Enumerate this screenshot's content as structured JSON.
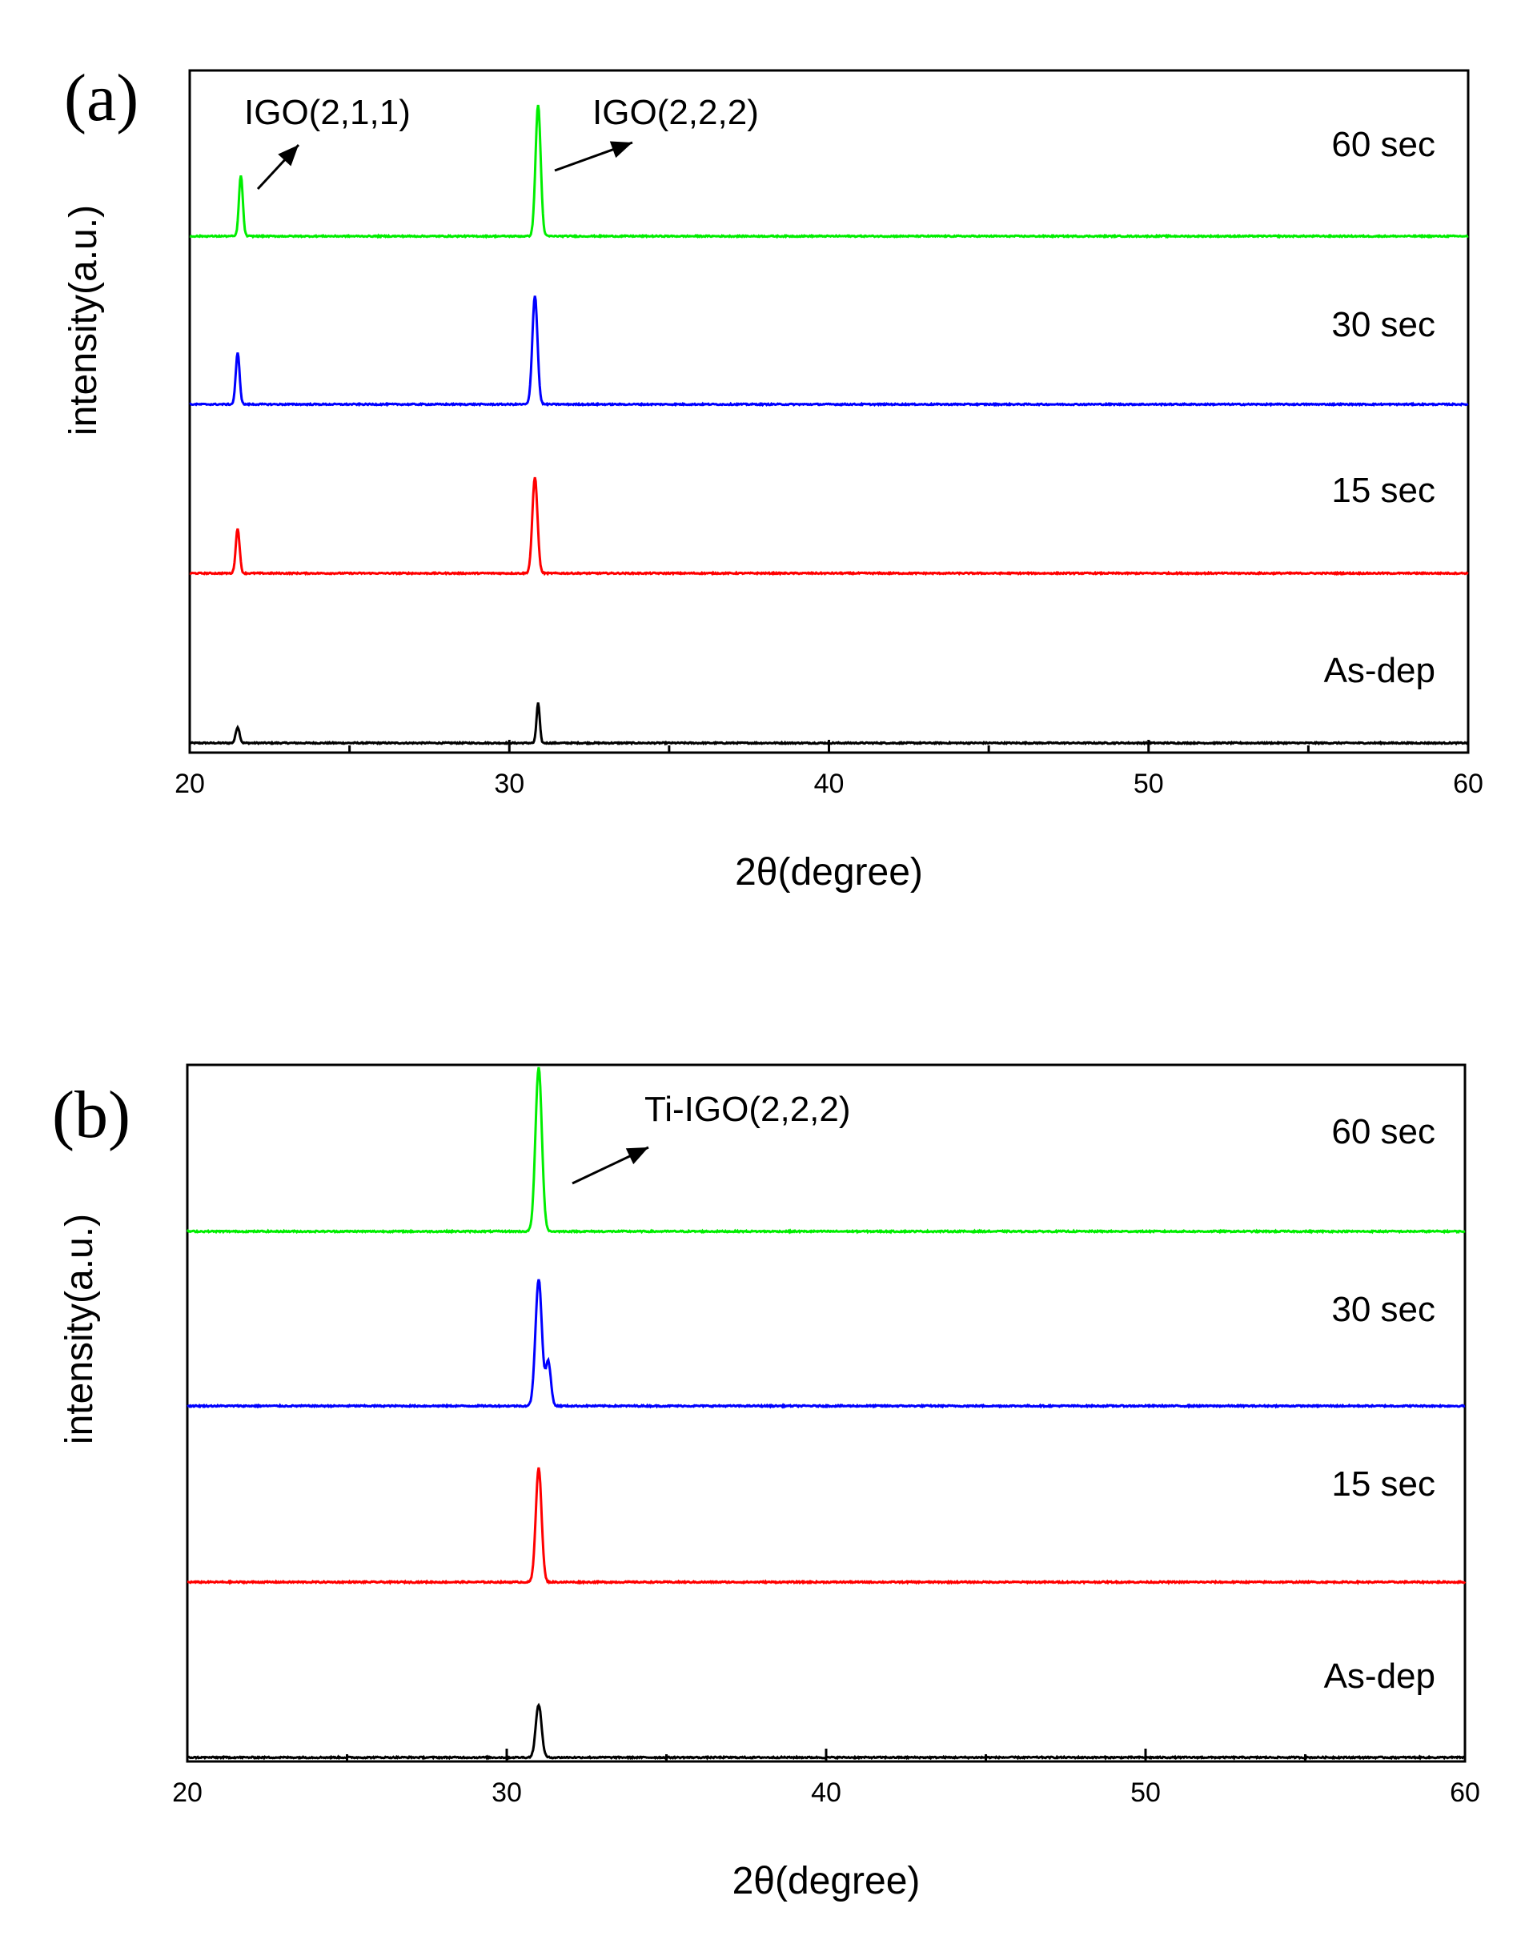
{
  "chart_data": [
    {
      "type": "line",
      "panel_label": "(a)",
      "xlabel": "2θ(degree)",
      "ylabel": "intensity(a.u.)",
      "xlim": [
        20,
        60
      ],
      "x_ticks": [
        20,
        30,
        40,
        50,
        60
      ],
      "x_tick_labels": [
        "20",
        "30",
        "40",
        "50",
        "60"
      ],
      "y_offsets_note": "curves stacked vertically with offsets (arbitrary units)",
      "ylim": [
        0,
        4.3
      ],
      "series": [
        {
          "name": "As-dep",
          "label": "As-dep",
          "color": "#000000",
          "offset": 0.0,
          "peaks": [
            {
              "x": 21.5,
              "height": 0.1,
              "width": 0.06
            },
            {
              "x": 30.9,
              "height": 0.25,
              "width": 0.05
            }
          ]
        },
        {
          "name": "15 sec",
          "label": "15 sec",
          "color": "#ff0000",
          "offset": 1.0,
          "peaks": [
            {
              "x": 21.5,
              "height": 0.28,
              "width": 0.06
            },
            {
              "x": 30.8,
              "height": 0.6,
              "width": 0.08
            }
          ]
        },
        {
          "name": "30 sec",
          "label": "30 sec",
          "color": "#0000ff",
          "offset": 2.0,
          "peaks": [
            {
              "x": 21.5,
              "height": 0.32,
              "width": 0.06
            },
            {
              "x": 30.8,
              "height": 0.68,
              "width": 0.08
            }
          ]
        },
        {
          "name": "60 sec",
          "label": "60 sec",
          "color": "#00ee00",
          "offset": 3.0,
          "peaks": [
            {
              "x": 21.6,
              "height": 0.38,
              "width": 0.06
            },
            {
              "x": 30.9,
              "height": 0.82,
              "width": 0.08
            }
          ]
        }
      ],
      "annotations": [
        {
          "text": "IGO(2,1,1)",
          "target_x": 22.2,
          "target_y": 3.55
        },
        {
          "text": "IGO(2,2,2)",
          "target_x": 33.7,
          "target_y": 3.55
        }
      ]
    },
    {
      "type": "line",
      "panel_label": "(b)",
      "xlabel": "2θ(degree)",
      "ylabel": "intensity(a.u.)",
      "xlim": [
        20,
        60
      ],
      "x_ticks": [
        20,
        30,
        40,
        50,
        60
      ],
      "x_tick_labels": [
        "20",
        "30",
        "40",
        "50",
        "60"
      ],
      "y_offsets_note": "curves stacked vertically with offsets (arbitrary units)",
      "ylim": [
        0,
        4.3
      ],
      "series": [
        {
          "name": "As-dep",
          "label": "As-dep",
          "color": "#000000",
          "offset": 0.0,
          "peaks": [
            {
              "x": 31.0,
              "height": 0.3,
              "width": 0.09
            }
          ]
        },
        {
          "name": "15 sec",
          "label": "15 sec",
          "color": "#ff0000",
          "offset": 1.0,
          "peaks": [
            {
              "x": 31.0,
              "height": 0.65,
              "width": 0.09
            }
          ]
        },
        {
          "name": "30 sec",
          "label": "30 sec",
          "color": "#0000ff",
          "offset": 2.0,
          "peaks": [
            {
              "x": 31.0,
              "height": 0.72,
              "width": 0.1
            },
            {
              "x": 31.3,
              "height": 0.25,
              "width": 0.08
            }
          ]
        },
        {
          "name": "60 sec",
          "label": "60 sec",
          "color": "#00ee00",
          "offset": 3.0,
          "peaks": [
            {
              "x": 31.0,
              "height": 0.93,
              "width": 0.1
            }
          ]
        }
      ],
      "annotations": [
        {
          "text": "Ti-IGO(2,2,2)",
          "target_x": 34.5,
          "target_y": 3.45
        }
      ]
    }
  ]
}
